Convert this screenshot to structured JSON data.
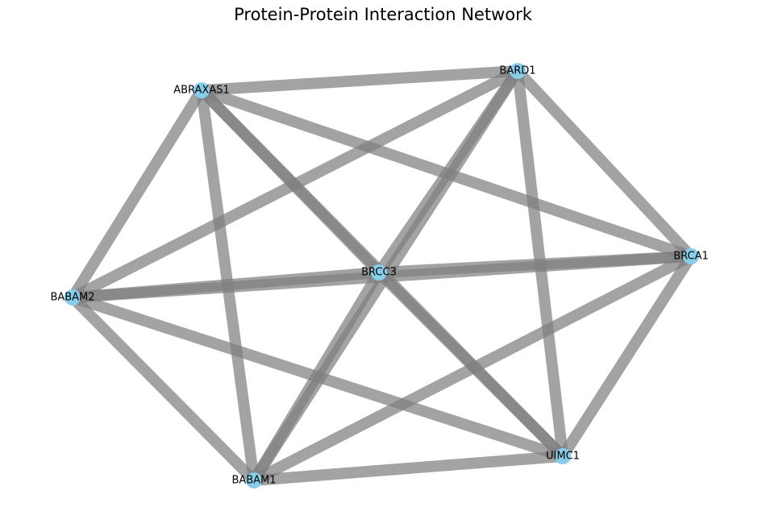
{
  "title": "Protein-Protein Interaction Network",
  "colors": {
    "edge": "#7f7f7f",
    "node": "#87ceeb",
    "label": "#000000"
  },
  "nodes": [
    {
      "id": "ABRAXAS1",
      "label": "ABRAXAS1"
    },
    {
      "id": "BARD1",
      "label": "BARD1"
    },
    {
      "id": "BRCA1",
      "label": "BRCA1"
    },
    {
      "id": "BRCC3",
      "label": "BRCC3"
    },
    {
      "id": "BABAM2",
      "label": "BABAM2"
    },
    {
      "id": "UIMC1",
      "label": "UIMC1"
    },
    {
      "id": "BABAM1",
      "label": "BABAM1"
    }
  ],
  "edges": [
    [
      "ABRAXAS1",
      "BARD1"
    ],
    [
      "ABRAXAS1",
      "BRCA1"
    ],
    [
      "ABRAXAS1",
      "BRCC3"
    ],
    [
      "ABRAXAS1",
      "BABAM2"
    ],
    [
      "ABRAXAS1",
      "UIMC1"
    ],
    [
      "ABRAXAS1",
      "BABAM1"
    ],
    [
      "BARD1",
      "BRCA1"
    ],
    [
      "BARD1",
      "BRCC3"
    ],
    [
      "BARD1",
      "BABAM2"
    ],
    [
      "BARD1",
      "UIMC1"
    ],
    [
      "BARD1",
      "BABAM1"
    ],
    [
      "BRCA1",
      "BRCC3"
    ],
    [
      "BRCA1",
      "BABAM2"
    ],
    [
      "BRCA1",
      "UIMC1"
    ],
    [
      "BRCA1",
      "BABAM1"
    ],
    [
      "BRCC3",
      "BABAM2"
    ],
    [
      "BRCC3",
      "UIMC1"
    ],
    [
      "BRCC3",
      "BABAM1"
    ],
    [
      "BABAM2",
      "UIMC1"
    ],
    [
      "BABAM2",
      "BABAM1"
    ],
    [
      "UIMC1",
      "BABAM1"
    ]
  ]
}
